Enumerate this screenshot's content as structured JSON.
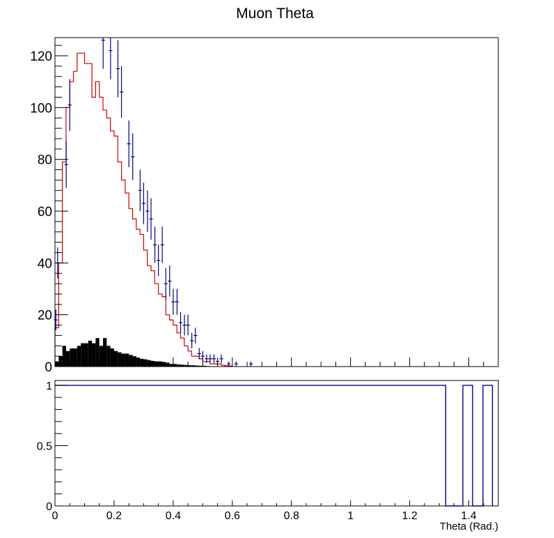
{
  "title": "Muon Theta",
  "colors": {
    "data_points": "#000080",
    "mc_line": "#cc0000",
    "background_fill": "#000000",
    "ratio_line": "#000080",
    "frame": "#000000"
  },
  "chart_data": [
    {
      "type": "bar",
      "panel": "top",
      "title": "Muon Theta",
      "xlabel": "",
      "ylabel": "",
      "xlim": [
        0,
        1.5
      ],
      "ylim": [
        0,
        127
      ],
      "yticks": [
        "0",
        "20",
        "40",
        "60",
        "80",
        "100",
        "120"
      ],
      "bin_width": 0.0125,
      "series": [
        {
          "style": "histogram-line",
          "x_start": 0,
          "values": [
            15,
            40,
            79,
            100,
            110,
            114,
            121,
            121,
            117,
            117,
            104,
            110,
            104,
            99,
            96,
            91,
            89,
            79,
            72,
            67,
            61,
            57,
            53,
            51,
            45,
            39,
            37,
            32,
            28,
            27,
            20,
            18,
            16,
            13,
            11,
            8,
            6,
            4,
            4,
            3,
            2,
            2,
            1,
            1,
            1,
            0.5,
            0.3,
            0.2
          ]
        },
        {
          "style": "error-points",
          "points": [
            {
              "x": 0.003,
              "y": 18,
              "err": 4
            },
            {
              "x": 0.009,
              "y": 40,
              "err": 6
            },
            {
              "x": 0.038,
              "y": 78,
              "err": 9
            },
            {
              "x": 0.05,
              "y": 101,
              "err": 10
            },
            {
              "x": 0.163,
              "y": 126,
              "err": 11
            },
            {
              "x": 0.188,
              "y": 122,
              "err": 11
            },
            {
              "x": 0.213,
              "y": 115,
              "err": 11
            },
            {
              "x": 0.225,
              "y": 106,
              "err": 10
            },
            {
              "x": 0.25,
              "y": 86,
              "err": 9
            },
            {
              "x": 0.263,
              "y": 81,
              "err": 9
            },
            {
              "x": 0.288,
              "y": 68,
              "err": 8
            },
            {
              "x": 0.3,
              "y": 63,
              "err": 8
            },
            {
              "x": 0.313,
              "y": 60,
              "err": 8
            },
            {
              "x": 0.325,
              "y": 57,
              "err": 8
            },
            {
              "x": 0.338,
              "y": 47,
              "err": 7
            },
            {
              "x": 0.35,
              "y": 41,
              "err": 6
            },
            {
              "x": 0.363,
              "y": 47,
              "err": 7
            },
            {
              "x": 0.375,
              "y": 32,
              "err": 6
            },
            {
              "x": 0.388,
              "y": 33,
              "err": 6
            },
            {
              "x": 0.4,
              "y": 25,
              "err": 5
            },
            {
              "x": 0.413,
              "y": 25,
              "err": 5
            },
            {
              "x": 0.425,
              "y": 17,
              "err": 4
            },
            {
              "x": 0.438,
              "y": 16,
              "err": 4
            },
            {
              "x": 0.45,
              "y": 16,
              "err": 4
            },
            {
              "x": 0.463,
              "y": 10,
              "err": 3
            },
            {
              "x": 0.475,
              "y": 12,
              "err": 3
            },
            {
              "x": 0.488,
              "y": 5,
              "err": 2.2
            },
            {
              "x": 0.5,
              "y": 4,
              "err": 2
            },
            {
              "x": 0.513,
              "y": 3,
              "err": 1.7
            },
            {
              "x": 0.525,
              "y": 3,
              "err": 1.7
            },
            {
              "x": 0.538,
              "y": 3,
              "err": 1.7
            },
            {
              "x": 0.55,
              "y": 2,
              "err": 1.4
            },
            {
              "x": 0.563,
              "y": 3,
              "err": 1.7
            },
            {
              "x": 0.588,
              "y": 1,
              "err": 1
            },
            {
              "x": 0.613,
              "y": 1,
              "err": 1
            },
            {
              "x": 0.663,
              "y": 1,
              "err": 1
            }
          ]
        },
        {
          "style": "filled-histogram",
          "x_start": 0,
          "values": [
            2,
            4,
            8,
            6,
            7,
            7,
            8,
            9,
            9,
            10,
            9,
            11,
            8,
            11,
            8,
            7,
            6,
            5.5,
            5,
            5,
            4.5,
            4,
            3.5,
            3,
            2.8,
            2.5,
            2.2,
            2,
            2,
            1.8,
            1.5,
            1,
            1,
            0.8,
            0.7,
            0.6,
            0.5,
            0.5,
            0.4,
            0.3,
            0.3,
            0.2
          ]
        }
      ]
    },
    {
      "type": "line",
      "panel": "bottom",
      "xlabel": "Theta (Rad.)",
      "ylabel": "",
      "xlim": [
        0,
        1.5
      ],
      "ylim": [
        0,
        1.04
      ],
      "xticks": [
        "0",
        "0.2",
        "0.4",
        "0.6",
        "0.8",
        "1",
        "1.2",
        "1.4"
      ],
      "yticks": [
        "0",
        "0.5",
        "1"
      ],
      "series": [
        {
          "style": "step",
          "points": [
            [
              0,
              1
            ],
            [
              1.322,
              1
            ],
            [
              1.322,
              0
            ],
            [
              1.38,
              0
            ],
            [
              1.38,
              1
            ],
            [
              1.413,
              1
            ],
            [
              1.413,
              0
            ],
            [
              1.448,
              0
            ],
            [
              1.448,
              1
            ],
            [
              1.48,
              1
            ],
            [
              1.48,
              0
            ]
          ]
        }
      ]
    }
  ]
}
